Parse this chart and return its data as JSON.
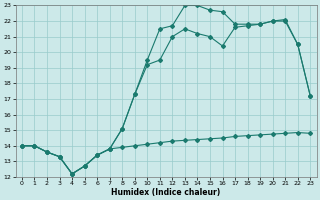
{
  "xlabel": "Humidex (Indice chaleur)",
  "xlim": [
    -0.5,
    23.5
  ],
  "ylim": [
    12,
    23
  ],
  "yticks": [
    12,
    13,
    14,
    15,
    16,
    17,
    18,
    19,
    20,
    21,
    22,
    23
  ],
  "xticks": [
    0,
    1,
    2,
    3,
    4,
    5,
    6,
    7,
    8,
    9,
    10,
    11,
    12,
    13,
    14,
    15,
    16,
    17,
    18,
    19,
    20,
    21,
    22,
    23
  ],
  "background_color": "#cce9e9",
  "grid_color": "#99cccc",
  "line_color": "#1a7a6e",
  "line1_x": [
    0,
    1,
    2,
    3,
    4,
    5,
    6,
    7,
    8,
    9,
    10,
    11,
    12,
    13,
    14,
    15,
    16,
    17,
    18,
    19,
    20,
    21,
    22,
    23
  ],
  "line1_y": [
    14.0,
    14.0,
    13.6,
    13.3,
    12.2,
    12.7,
    13.4,
    13.8,
    13.9,
    14.0,
    14.1,
    14.2,
    14.3,
    14.35,
    14.4,
    14.45,
    14.5,
    14.6,
    14.65,
    14.7,
    14.75,
    14.8,
    14.85,
    14.8
  ],
  "line2_x": [
    0,
    1,
    2,
    3,
    4,
    5,
    6,
    7,
    8,
    9,
    10,
    11,
    12,
    13,
    14,
    15,
    16,
    17,
    18,
    19,
    20,
    21,
    22,
    23
  ],
  "line2_y": [
    14.0,
    14.0,
    13.6,
    13.3,
    12.2,
    12.7,
    13.4,
    13.8,
    15.1,
    17.3,
    19.2,
    19.5,
    21.0,
    21.5,
    21.2,
    21.0,
    20.4,
    21.6,
    21.7,
    21.8,
    22.0,
    22.0,
    20.5,
    17.2
  ],
  "line3_x": [
    0,
    1,
    2,
    3,
    4,
    5,
    6,
    7,
    8,
    9,
    10,
    11,
    12,
    13,
    14,
    15,
    16,
    17,
    18,
    19,
    20,
    21,
    22,
    23
  ],
  "line3_y": [
    14.0,
    14.0,
    13.6,
    13.3,
    12.2,
    12.7,
    13.4,
    13.8,
    15.1,
    17.3,
    19.5,
    21.5,
    21.7,
    23.0,
    23.0,
    22.7,
    22.6,
    21.8,
    21.8,
    21.8,
    22.0,
    22.1,
    20.5,
    17.2
  ]
}
